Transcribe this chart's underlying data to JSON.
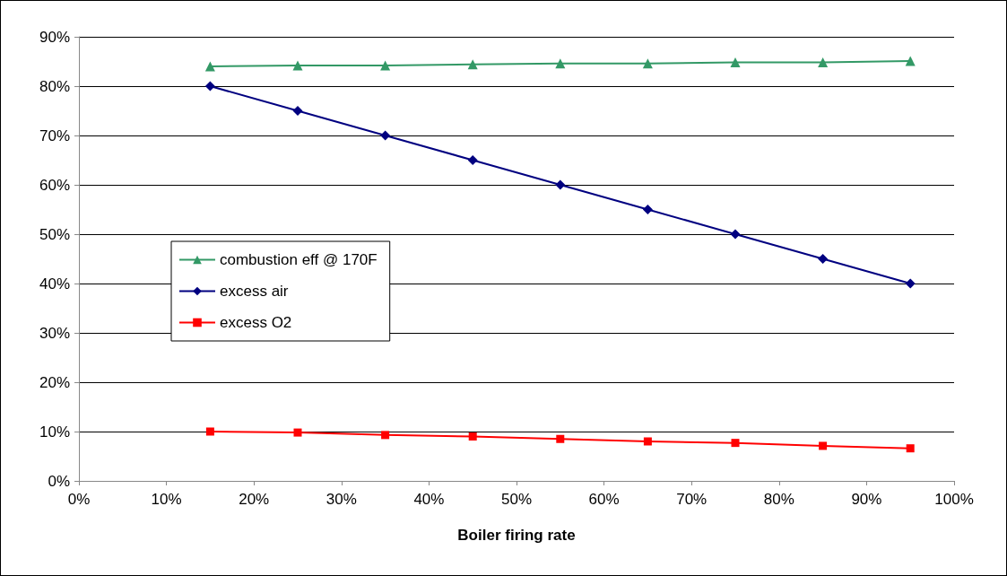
{
  "chart_data": {
    "type": "line",
    "xlabel": "Boiler firing rate",
    "x": [
      15,
      25,
      35,
      45,
      55,
      65,
      75,
      85,
      95
    ],
    "series": [
      {
        "name": "combustion eff @ 170F",
        "color": "#339966",
        "marker": "triangle",
        "values": [
          84,
          84.2,
          84.2,
          84.4,
          84.6,
          84.6,
          84.8,
          84.8,
          85.1
        ]
      },
      {
        "name": "excess air",
        "color": "#000080",
        "marker": "diamond",
        "values": [
          80,
          75,
          70,
          65,
          60,
          55,
          50,
          45,
          40
        ]
      },
      {
        "name": "excess O2",
        "color": "#ff0000",
        "marker": "square",
        "values": [
          10,
          9.8,
          9.3,
          9,
          8.5,
          8,
          7.7,
          7.1,
          6.6
        ]
      }
    ],
    "xlim": [
      0,
      100
    ],
    "xticks": [
      {
        "value": 0,
        "label": "0%"
      },
      {
        "value": 10,
        "label": "10%"
      },
      {
        "value": 20,
        "label": "20%"
      },
      {
        "value": 30,
        "label": "30%"
      },
      {
        "value": 40,
        "label": "40%"
      },
      {
        "value": 50,
        "label": "50%"
      },
      {
        "value": 60,
        "label": "60%"
      },
      {
        "value": 70,
        "label": "70%"
      },
      {
        "value": 80,
        "label": "80%"
      },
      {
        "value": 90,
        "label": "90%"
      },
      {
        "value": 100,
        "label": "100%"
      }
    ],
    "ylim": [
      0,
      90
    ],
    "yticks": [
      {
        "value": 0,
        "label": "0%"
      },
      {
        "value": 10,
        "label": "10%"
      },
      {
        "value": 20,
        "label": "20%"
      },
      {
        "value": 30,
        "label": "30%"
      },
      {
        "value": 40,
        "label": "40%"
      },
      {
        "value": 50,
        "label": "50%"
      },
      {
        "value": 60,
        "label": "60%"
      },
      {
        "value": 70,
        "label": "70%"
      },
      {
        "value": 80,
        "label": "80%"
      },
      {
        "value": 90,
        "label": "90%"
      }
    ],
    "grid": "y",
    "legend": "left",
    "line_style": "solid"
  }
}
